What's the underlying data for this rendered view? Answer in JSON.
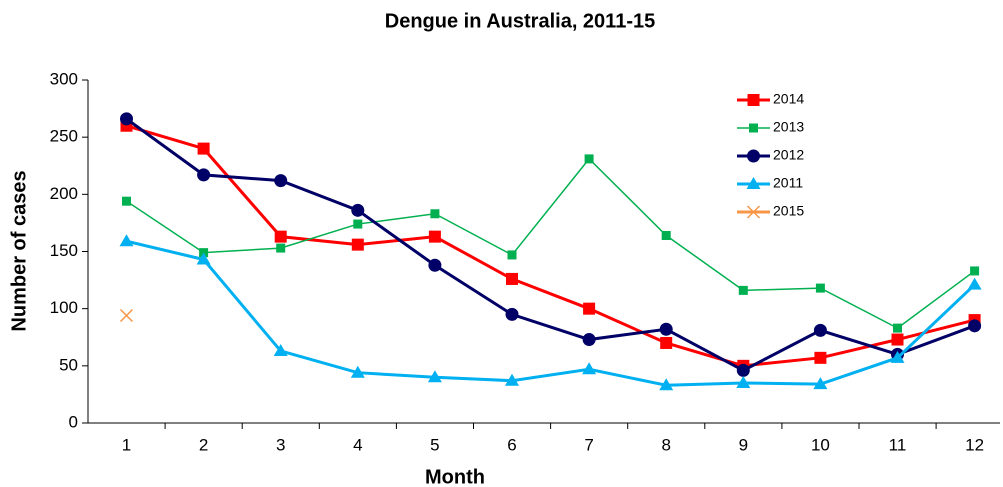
{
  "chart_data": {
    "type": "line",
    "title": "Dengue in Australia, 2011-15",
    "xlabel": "Month",
    "ylabel": "Number of cases",
    "categories": [
      "1",
      "2",
      "3",
      "4",
      "5",
      "6",
      "7",
      "8",
      "9",
      "10",
      "11",
      "12"
    ],
    "series": [
      {
        "name": "2014",
        "color": "#ff0000",
        "marker": "square",
        "values": [
          260,
          240,
          163,
          156,
          163,
          126,
          100,
          70,
          50,
          57,
          73,
          90
        ]
      },
      {
        "name": "2013",
        "color": "#00b050",
        "marker": "small-square",
        "values": [
          194,
          149,
          153,
          174,
          183,
          147,
          231,
          164,
          116,
          118,
          83,
          133
        ]
      },
      {
        "name": "2012",
        "color": "#000066",
        "marker": "circle",
        "values": [
          266,
          217,
          212,
          186,
          138,
          95,
          73,
          82,
          46,
          81,
          60,
          85
        ]
      },
      {
        "name": "2011",
        "color": "#00b0f0",
        "marker": "triangle",
        "values": [
          159,
          143,
          63,
          44,
          40,
          37,
          47,
          33,
          35,
          34,
          57,
          121
        ]
      },
      {
        "name": "2015",
        "color": "#f79646",
        "marker": "cross",
        "values": [
          94,
          null,
          null,
          null,
          null,
          null,
          null,
          null,
          null,
          null,
          null,
          null
        ]
      }
    ],
    "ylim": [
      0,
      300
    ],
    "yticks": [
      0,
      50,
      100,
      150,
      200,
      250,
      300
    ],
    "grid": false
  }
}
